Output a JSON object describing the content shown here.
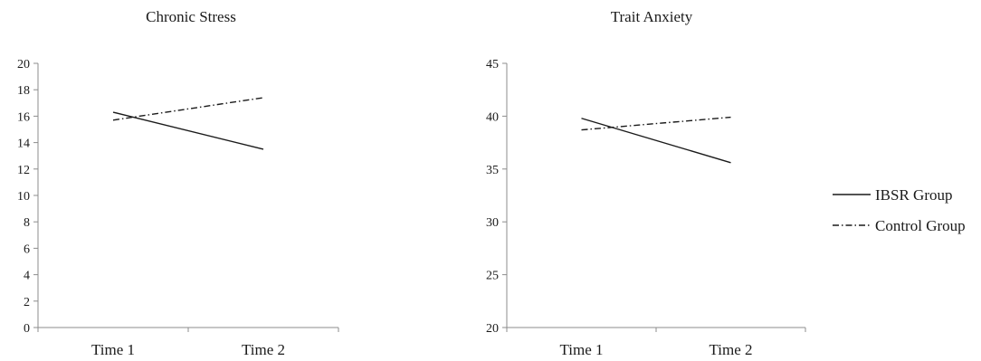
{
  "chart_data": [
    {
      "type": "line",
      "title": "Chronic Stress",
      "categories": [
        "Time 1",
        "Time 2"
      ],
      "ylim": [
        0,
        20
      ],
      "yticks": [
        0,
        2,
        4,
        6,
        8,
        10,
        12,
        14,
        16,
        18,
        20
      ],
      "series": [
        {
          "name": "IBSR Group",
          "values": [
            16.3,
            13.5
          ],
          "style": "solid"
        },
        {
          "name": "Control Group",
          "values": [
            15.7,
            17.4
          ],
          "style": "dash-dot"
        }
      ],
      "grid": false
    },
    {
      "type": "line",
      "title": "Trait Anxiety",
      "categories": [
        "Time 1",
        "Time 2"
      ],
      "ylim": [
        20,
        45
      ],
      "yticks": [
        20,
        25,
        30,
        35,
        40,
        45
      ],
      "series": [
        {
          "name": "IBSR Group",
          "values": [
            39.8,
            35.6
          ],
          "style": "solid"
        },
        {
          "name": "Control Group",
          "values": [
            38.7,
            39.9
          ],
          "style": "dash-dot"
        }
      ],
      "grid": false
    }
  ],
  "legend": {
    "placement": "right",
    "items": [
      {
        "label": "IBSR Group",
        "style": "solid"
      },
      {
        "label": "Control Group",
        "style": "dash-dot"
      }
    ]
  },
  "colors": {
    "line": "#1a1a1a",
    "axis": "#8c8c8c"
  }
}
